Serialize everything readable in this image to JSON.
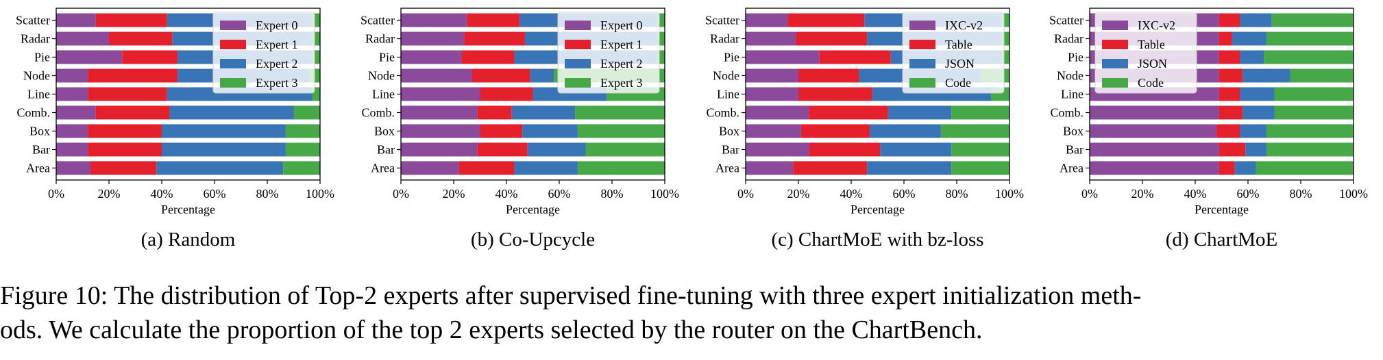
{
  "chart_data": [
    {
      "type": "bar",
      "orientation": "horizontal",
      "stacked": true,
      "subcaption": "(a) Random",
      "xlabel": "Percentage",
      "xlim": [
        0,
        100
      ],
      "xticks": [
        "0%",
        "20%",
        "40%",
        "60%",
        "80%",
        "100%"
      ],
      "categories": [
        "Scatter",
        "Radar",
        "Pie",
        "Node",
        "Line",
        "Comb.",
        "Box",
        "Bar",
        "Area"
      ],
      "legend_position": "top-right",
      "series": [
        {
          "name": "Expert 0",
          "color": "#8b4a9a",
          "values": [
            15,
            20,
            25,
            12,
            12,
            15,
            12,
            12,
            13
          ]
        },
        {
          "name": "Expert 1",
          "color": "#e3202b",
          "values": [
            27,
            24,
            21,
            34,
            30,
            28,
            28,
            28,
            25
          ]
        },
        {
          "name": "Expert 2",
          "color": "#3974b6",
          "values": [
            55,
            53,
            51,
            50,
            55,
            47,
            47,
            47,
            48
          ]
        },
        {
          "name": "Expert 3",
          "color": "#46a847",
          "values": [
            3,
            3,
            3,
            4,
            3,
            10,
            13,
            13,
            14
          ]
        }
      ]
    },
    {
      "type": "bar",
      "orientation": "horizontal",
      "stacked": true,
      "subcaption": "(b) Co-Upcycle",
      "xlabel": "Percentage",
      "xlim": [
        0,
        100
      ],
      "xticks": [
        "0%",
        "20%",
        "40%",
        "60%",
        "80%",
        "100%"
      ],
      "categories": [
        "Scatter",
        "Radar",
        "Pie",
        "Node",
        "Line",
        "Comb.",
        "Box",
        "Bar",
        "Area"
      ],
      "legend_position": "top-right",
      "series": [
        {
          "name": "Expert 0",
          "color": "#8b4a9a",
          "values": [
            25,
            24,
            23,
            27,
            30,
            29,
            30,
            29,
            22
          ]
        },
        {
          "name": "Expert 1",
          "color": "#e3202b",
          "values": [
            20,
            23,
            20,
            22,
            20,
            13,
            16,
            19,
            21
          ]
        },
        {
          "name": "Expert 2",
          "color": "#3974b6",
          "values": [
            52,
            50,
            54,
            9,
            28,
            24,
            21,
            22,
            24
          ]
        },
        {
          "name": "Expert 3",
          "color": "#46a847",
          "values": [
            3,
            3,
            3,
            42,
            22,
            34,
            33,
            30,
            33
          ]
        }
      ]
    },
    {
      "type": "bar",
      "orientation": "horizontal",
      "stacked": true,
      "subcaption": "(c) ChartMoE with bz-loss",
      "xlabel": "Percentage",
      "xlim": [
        0,
        100
      ],
      "xticks": [
        "0%",
        "20%",
        "40%",
        "60%",
        "80%",
        "100%"
      ],
      "categories": [
        "Scatter",
        "Radar",
        "Pie",
        "Node",
        "Line",
        "Comb.",
        "Box",
        "Bar",
        "Area"
      ],
      "legend_position": "top-right",
      "series": [
        {
          "name": "IXC-v2",
          "color": "#8b4a9a",
          "values": [
            16,
            19,
            28,
            20,
            20,
            24,
            21,
            24,
            18
          ]
        },
        {
          "name": "Table",
          "color": "#e3202b",
          "values": [
            29,
            27,
            27,
            23,
            28,
            30,
            26,
            27,
            28
          ]
        },
        {
          "name": "JSON",
          "color": "#3974b6",
          "values": [
            52,
            51,
            42,
            46,
            45,
            24,
            27,
            27,
            32
          ]
        },
        {
          "name": "Code",
          "color": "#46a847",
          "values": [
            3,
            3,
            3,
            11,
            7,
            22,
            26,
            22,
            22
          ]
        }
      ]
    },
    {
      "type": "bar",
      "orientation": "horizontal",
      "stacked": true,
      "subcaption": "(d) ChartMoE",
      "xlabel": "Percentage",
      "xlim": [
        0,
        100
      ],
      "xticks": [
        "0%",
        "20%",
        "40%",
        "60%",
        "80%",
        "100%"
      ],
      "categories": [
        "Scatter",
        "Radar",
        "Pie",
        "Node",
        "Line",
        "Comb.",
        "Box",
        "Bar",
        "Area"
      ],
      "legend_position": "top-left",
      "series": [
        {
          "name": "IXC-v2",
          "color": "#8b4a9a",
          "values": [
            49,
            49,
            49,
            49,
            49,
            49,
            48,
            49,
            49
          ]
        },
        {
          "name": "Table",
          "color": "#e3202b",
          "values": [
            8,
            5,
            8,
            9,
            8,
            9,
            9,
            10,
            6
          ]
        },
        {
          "name": "JSON",
          "color": "#3974b6",
          "values": [
            12,
            13,
            9,
            18,
            13,
            12,
            10,
            8,
            8
          ]
        },
        {
          "name": "Code",
          "color": "#46a847",
          "values": [
            31,
            33,
            34,
            24,
            30,
            30,
            33,
            33,
            37
          ]
        }
      ]
    }
  ],
  "caption": {
    "line1": "Figure 10: The distribution of Top-2 experts after supervised fine-tuning with three expert initialization meth-",
    "line2": "ods. We calculate the proportion of the top 2 experts selected by the router on the ChartBench."
  }
}
